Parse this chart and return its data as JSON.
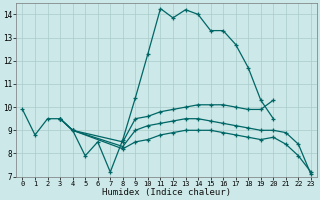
{
  "xlabel": "Humidex (Indice chaleur)",
  "xlim": [
    -0.5,
    23.5
  ],
  "ylim": [
    7,
    14.5
  ],
  "yticks": [
    7,
    8,
    9,
    10,
    11,
    12,
    13,
    14
  ],
  "xticks": [
    0,
    1,
    2,
    3,
    4,
    5,
    6,
    7,
    8,
    9,
    10,
    11,
    12,
    13,
    14,
    15,
    16,
    17,
    18,
    19,
    20,
    21,
    22,
    23
  ],
  "bg_color": "#cce8e8",
  "grid_color": "#aacccc",
  "line_color": "#006666",
  "curves": [
    {
      "x": [
        0,
        1,
        2,
        3,
        4,
        5,
        6,
        7,
        8,
        9,
        10,
        11,
        12,
        13,
        14,
        15,
        16,
        17,
        18,
        19,
        20
      ],
      "y": [
        9.9,
        8.8,
        9.5,
        9.5,
        9.0,
        7.9,
        8.5,
        7.2,
        8.6,
        10.4,
        12.3,
        14.25,
        13.85,
        14.2,
        14.0,
        13.3,
        13.3,
        12.7,
        11.7,
        10.3,
        9.5
      ]
    },
    {
      "x": [
        3,
        4,
        8,
        9,
        10,
        11,
        12,
        13,
        14,
        15,
        16,
        17,
        18,
        19,
        20
      ],
      "y": [
        9.5,
        9.0,
        8.5,
        9.5,
        9.6,
        9.8,
        9.9,
        10.0,
        10.1,
        10.1,
        10.1,
        10.0,
        9.9,
        9.9,
        10.3
      ]
    },
    {
      "x": [
        3,
        4,
        8,
        9,
        10,
        11,
        12,
        13,
        14,
        15,
        16,
        17,
        18,
        19,
        20,
        21,
        22,
        23
      ],
      "y": [
        9.5,
        9.0,
        8.3,
        9.0,
        9.2,
        9.3,
        9.4,
        9.5,
        9.5,
        9.4,
        9.3,
        9.2,
        9.1,
        9.0,
        9.0,
        8.9,
        8.4,
        7.1
      ]
    },
    {
      "x": [
        3,
        4,
        8,
        9,
        10,
        11,
        12,
        13,
        14,
        15,
        16,
        17,
        18,
        19,
        20,
        21,
        22,
        23
      ],
      "y": [
        9.5,
        9.0,
        8.2,
        8.5,
        8.6,
        8.8,
        8.9,
        9.0,
        9.0,
        9.0,
        8.9,
        8.8,
        8.7,
        8.6,
        8.7,
        8.4,
        7.9,
        7.2
      ]
    }
  ]
}
